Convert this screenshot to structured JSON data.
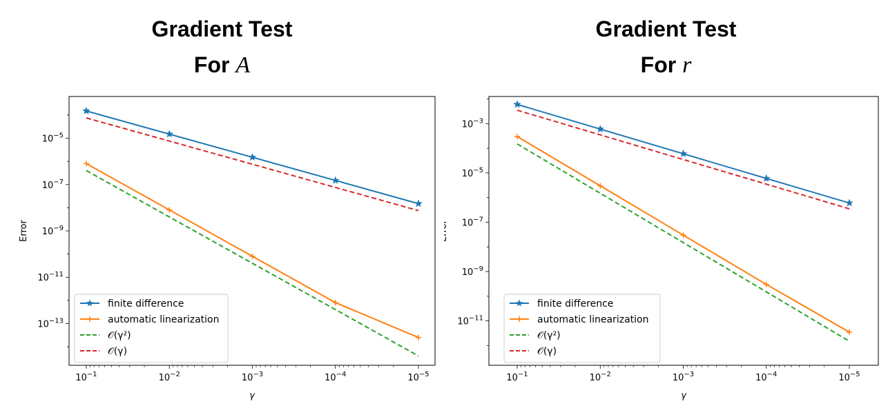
{
  "chart_data": [
    {
      "type": "line",
      "title_line1": "Gradient Test",
      "title_line2_prefix": "For ",
      "title_line2_var": "A",
      "xlabel": "γ",
      "ylabel": "Error",
      "x_scale": "log-reversed",
      "y_scale": "log",
      "x": [
        0.1,
        0.01,
        0.001,
        0.0001,
        1e-05
      ],
      "xlim": [
        0.1,
        1e-05
      ],
      "ylim_log10": [
        -14.8,
        -3.2
      ],
      "x_ticks": [
        {
          "exp": -1,
          "base": "10",
          "exp_label": "−1"
        },
        {
          "exp": -2,
          "base": "10",
          "exp_label": "−2"
        },
        {
          "exp": -3,
          "base": "10",
          "exp_label": "−3"
        },
        {
          "exp": -4,
          "base": "10",
          "exp_label": "−4"
        },
        {
          "exp": -5,
          "base": "10",
          "exp_label": "−5"
        }
      ],
      "y_ticks": [
        {
          "exp": -5,
          "base": "10",
          "exp_label": "−5"
        },
        {
          "exp": -7,
          "base": "10",
          "exp_label": "−7"
        },
        {
          "exp": -9,
          "base": "10",
          "exp_label": "−9"
        },
        {
          "exp": -11,
          "base": "10",
          "exp_label": "−11"
        },
        {
          "exp": -13,
          "base": "10",
          "exp_label": "−13"
        }
      ],
      "legend_position": "lower-left",
      "series": [
        {
          "name": "finite difference",
          "values": [
            0.00015,
            1.5e-05,
            1.5e-06,
            1.5e-07,
            1.5e-08
          ],
          "color": "#1f77b4",
          "style": "solid",
          "marker": "star"
        },
        {
          "name": "automatic linearization",
          "values": [
            8e-07,
            8e-09,
            8e-11,
            8e-13,
            2.5e-14
          ],
          "color": "#ff7f0e",
          "style": "solid",
          "marker": "plus"
        },
        {
          "name": "𝒪(γ²)",
          "values": [
            4e-07,
            4e-09,
            4e-11,
            4e-13,
            4e-15
          ],
          "color": "#2ca02c",
          "style": "dashed",
          "marker": "none"
        },
        {
          "name": "𝒪(γ)",
          "values": [
            7.5e-05,
            7.5e-06,
            7.5e-07,
            7.5e-08,
            7.5e-09
          ],
          "color": "#d62728",
          "style": "dashed",
          "marker": "none"
        }
      ]
    },
    {
      "type": "line",
      "title_line1": "Gradient Test",
      "title_line2_prefix": "For ",
      "title_line2_var": "r",
      "xlabel": "γ",
      "ylabel": "Error",
      "x_scale": "log-reversed",
      "y_scale": "log",
      "x": [
        0.1,
        0.01,
        0.001,
        0.0001,
        1e-05
      ],
      "xlim": [
        0.1,
        1e-05
      ],
      "ylim_log10": [
        -12.8,
        -1.9
      ],
      "x_ticks": [
        {
          "exp": -1,
          "base": "10",
          "exp_label": "−1"
        },
        {
          "exp": -2,
          "base": "10",
          "exp_label": "−2"
        },
        {
          "exp": -3,
          "base": "10",
          "exp_label": "−3"
        },
        {
          "exp": -4,
          "base": "10",
          "exp_label": "−4"
        },
        {
          "exp": -5,
          "base": "10",
          "exp_label": "−5"
        }
      ],
      "y_ticks": [
        {
          "exp": -3,
          "base": "10",
          "exp_label": "−3"
        },
        {
          "exp": -5,
          "base": "10",
          "exp_label": "−5"
        },
        {
          "exp": -7,
          "base": "10",
          "exp_label": "−7"
        },
        {
          "exp": -9,
          "base": "10",
          "exp_label": "−9"
        },
        {
          "exp": -11,
          "base": "10",
          "exp_label": "−11"
        }
      ],
      "legend_position": "lower-left",
      "series": [
        {
          "name": "finite difference",
          "values": [
            0.006,
            0.0006,
            6e-05,
            6e-06,
            6e-07
          ],
          "color": "#1f77b4",
          "style": "solid",
          "marker": "star"
        },
        {
          "name": "automatic linearization",
          "values": [
            0.0003,
            3e-06,
            3e-08,
            3e-10,
            3.5e-12
          ],
          "color": "#ff7f0e",
          "style": "solid",
          "marker": "plus"
        },
        {
          "name": "𝒪(γ²)",
          "values": [
            0.00015,
            1.5e-06,
            1.5e-08,
            1.5e-10,
            1.5e-12
          ],
          "color": "#2ca02c",
          "style": "dashed",
          "marker": "none"
        },
        {
          "name": "𝒪(γ)",
          "values": [
            0.0035,
            0.00035,
            3.5e-05,
            3.5e-06,
            3.5e-07
          ],
          "color": "#d62728",
          "style": "dashed",
          "marker": "none"
        }
      ]
    }
  ]
}
